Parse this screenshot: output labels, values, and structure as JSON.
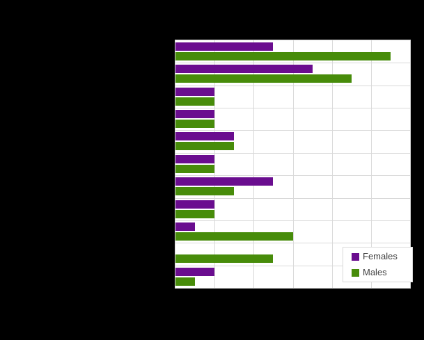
{
  "window": {
    "background_color": "#000000",
    "plot_background_color": "#ffffff",
    "gridline_color": "#d9d9d9"
  },
  "legend": {
    "items": [
      {
        "label": "Females",
        "color": "#6a0d8f"
      },
      {
        "label": "Males",
        "color": "#478c0a"
      }
    ]
  },
  "chart_data": {
    "type": "bar",
    "orientation": "horizontal",
    "title": "",
    "categories": [
      "",
      "",
      "",
      "",
      "",
      "",
      "",
      "",
      "",
      "",
      ""
    ],
    "series": [
      {
        "name": "Females",
        "color": "#6a0d8f",
        "values": [
          5,
          7,
          2,
          2,
          3,
          2,
          5,
          2,
          1,
          0,
          2
        ]
      },
      {
        "name": "Males",
        "color": "#478c0a",
        "values": [
          11,
          9,
          2,
          2,
          3,
          2,
          3,
          2,
          6,
          5,
          1
        ]
      }
    ],
    "xlim": [
      0,
      12
    ],
    "x_gridline_divisions": 6,
    "grid": true,
    "legend_position": "bottom-right",
    "axis_tick_labels_visible": false,
    "category_labels_visible": false
  }
}
